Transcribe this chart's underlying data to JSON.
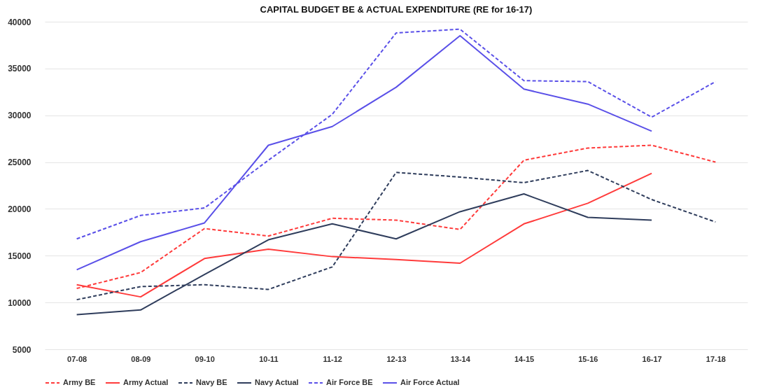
{
  "chart_data": {
    "type": "line",
    "title": "CAPITAL BUDGET BE & ACTUAL EXPENDITURE (RE for 16-17)",
    "categories": [
      "07-08",
      "08-09",
      "09-10",
      "10-11",
      "11-12",
      "12-13",
      "13-14",
      "14-15",
      "15-16",
      "16-17",
      "17-18"
    ],
    "ylim": [
      5000,
      40000
    ],
    "yticks": [
      5000,
      10000,
      15000,
      20000,
      25000,
      30000,
      35000,
      40000
    ],
    "grid": "y",
    "legend": "bottom",
    "series": [
      {
        "name": "Army BE",
        "color": "#ff3b3b",
        "line_style": "dashed",
        "values": [
          11500,
          13200,
          17900,
          17100,
          19000,
          18800,
          17800,
          25200,
          26500,
          26800,
          25000
        ]
      },
      {
        "name": "Army Actual",
        "color": "#ff3b3b",
        "line_style": "solid",
        "values": [
          11900,
          10600,
          14700,
          15700,
          14900,
          14600,
          14200,
          18400,
          20600,
          23800,
          null
        ]
      },
      {
        "name": "Navy BE",
        "color": "#2f3d5c",
        "line_style": "dashed",
        "values": [
          10300,
          11700,
          11900,
          11400,
          13800,
          23900,
          23400,
          22800,
          24100,
          21000,
          18600
        ]
      },
      {
        "name": "Navy Actual",
        "color": "#2f3d5c",
        "line_style": "solid",
        "values": [
          8700,
          9200,
          13000,
          16700,
          18400,
          16800,
          19700,
          21600,
          19100,
          18800,
          null
        ]
      },
      {
        "name": "Air Force BE",
        "color": "#5a50e8",
        "line_style": "dashed",
        "values": [
          16800,
          19300,
          20100,
          25200,
          30100,
          38800,
          39200,
          33700,
          33600,
          29800,
          33600
        ]
      },
      {
        "name": "Air Force Actual",
        "color": "#5a50e8",
        "line_style": "solid",
        "values": [
          13500,
          16500,
          18500,
          26800,
          28800,
          33000,
          38500,
          32800,
          31200,
          28300,
          null
        ]
      }
    ]
  }
}
